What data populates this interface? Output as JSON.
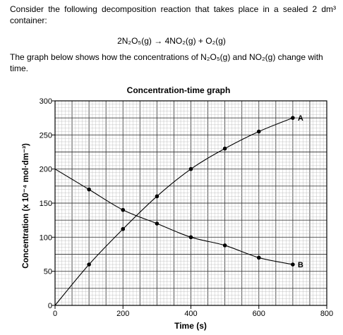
{
  "question": {
    "intro": "Consider the following decomposition reaction that takes place in a sealed 2 dm³ container:",
    "equation": "2N₂O₅(g) → 4NO₂(g) + O₂(g)",
    "description": "The graph below shows how the concentrations of N₂O₅(g) and NO₂(g) change with time."
  },
  "chart_data": {
    "type": "line",
    "title": "Concentration-time graph",
    "xlabel": "Time (s)",
    "ylabel": "Concentration (x 10⁻⁴ mol·dm⁻³)",
    "xlim": [
      0,
      800
    ],
    "ylim": [
      0,
      300
    ],
    "xticks": [
      0,
      200,
      400,
      600,
      800
    ],
    "yticks": [
      0,
      50,
      100,
      150,
      200,
      250,
      300
    ],
    "grid": true,
    "series": [
      {
        "name": "A",
        "x": [
          0,
          100,
          200,
          300,
          400,
          500,
          600,
          700
        ],
        "values": [
          0,
          60,
          112,
          160,
          200,
          230,
          255,
          275
        ]
      },
      {
        "name": "B",
        "x": [
          0,
          100,
          200,
          300,
          400,
          500,
          600,
          700
        ],
        "values": [
          200,
          170,
          140,
          120,
          100,
          88,
          70,
          60
        ]
      }
    ]
  }
}
